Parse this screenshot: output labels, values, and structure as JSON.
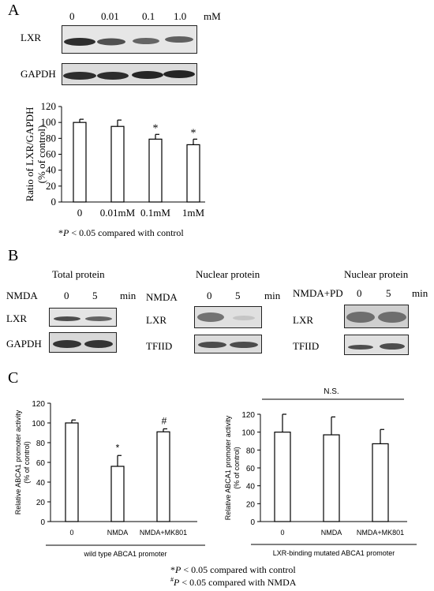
{
  "panelA": {
    "letter": "A",
    "conc_labels": [
      "0",
      "0.01",
      "0.1",
      "1.0"
    ],
    "conc_unit": "mM",
    "row_labels": [
      "LXR",
      "GAPDH"
    ],
    "footnote_p": "P",
    "footnote_rest": " < 0.05 compared with  control"
  },
  "panelB": {
    "letter": "B",
    "total": {
      "title": "Total protein",
      "treatment": "NMDA",
      "times": [
        "0",
        "5"
      ],
      "unit": "min",
      "rows": [
        "LXR",
        "GAPDH"
      ]
    },
    "nuclear": {
      "title": "Nuclear protein",
      "treatment": "NMDA",
      "times": [
        "0",
        "5"
      ],
      "unit": "min",
      "rows": [
        "LXR",
        "TFIID"
      ]
    },
    "nuclear_pd": {
      "title": "Nuclear protein",
      "treatment": "NMDA+PD",
      "times": [
        "0",
        "5"
      ],
      "unit": "min",
      "rows": [
        "LXR",
        "TFIID"
      ]
    }
  },
  "panelC": {
    "letter": "C",
    "ns_label": "N.S.",
    "footnote1_p": "P",
    "footnote1_rest": " < 0.05 compared with  control",
    "footnote2_p": "P",
    "footnote2_rest": " < 0.05 compared with NMDA"
  },
  "chart_data": [
    {
      "type": "bar",
      "panel": "A",
      "categories": [
        "0",
        "0.01mM",
        "0.1mM",
        "1mM"
      ],
      "values": [
        100,
        95,
        79,
        72
      ],
      "errors": [
        4,
        8,
        6,
        7
      ],
      "significance": [
        "",
        "",
        "*",
        "*"
      ],
      "ylabel": "Ratio of LXR/GAPDH",
      "ylabel2": "(% of control)",
      "ylim": [
        0,
        120
      ],
      "yticks": [
        0,
        20,
        40,
        60,
        80,
        100,
        120
      ]
    },
    {
      "type": "bar",
      "panel": "C-left",
      "categories": [
        "0",
        "NMDA",
        "NMDA+MK801"
      ],
      "values": [
        100,
        56,
        91
      ],
      "errors": [
        3,
        11,
        3
      ],
      "significance": [
        "",
        "*",
        "#"
      ],
      "ylabel": "Relative ABCA1 promoter activity",
      "ylabel2": "(% of control)",
      "xlabel": "wild type ABCA1 promoter",
      "ylim": [
        0,
        120
      ],
      "yticks": [
        0,
        20,
        40,
        60,
        80,
        100,
        120
      ]
    },
    {
      "type": "bar",
      "panel": "C-right",
      "categories": [
        "0",
        "NMDA",
        "NMDA+MK801"
      ],
      "values": [
        100,
        97,
        87
      ],
      "errors": [
        20,
        20,
        16
      ],
      "significance": [
        "",
        "",
        ""
      ],
      "ylabel": "Relative ABCA1 promoter activity",
      "ylabel2": "(% of control)",
      "xlabel": "LXR-binding mutated ABCA1 promoter",
      "ylim": [
        0,
        120
      ],
      "yticks": [
        0,
        20,
        40,
        60,
        80,
        100,
        120
      ]
    }
  ]
}
